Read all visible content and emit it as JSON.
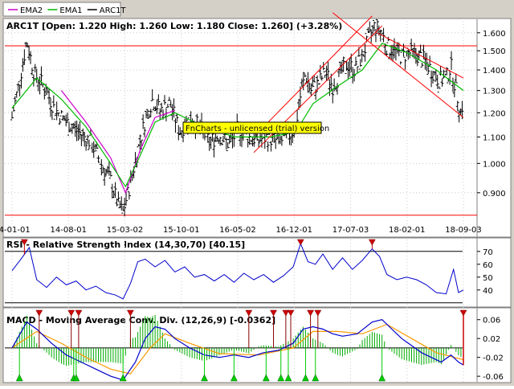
{
  "legend": {
    "items": [
      {
        "label": "EMA2",
        "color": "#cc00cc"
      },
      {
        "label": "EMA1",
        "color": "#00bb00"
      },
      {
        "label": "ARC1T",
        "color": "#000000"
      }
    ]
  },
  "watermark": "FnCharts - unlicensed (trial) version",
  "colors": {
    "price": "#000000",
    "ema1": "#00bb00",
    "ema2": "#cc00cc",
    "channel": "#ff0000",
    "rsi": "#0000cc",
    "macd": "#0000cc",
    "signal": "#ff9900",
    "histogram": "#00aa00",
    "buy": "#00cc00",
    "sell": "#cc0000",
    "panel_bg": "#ffffff",
    "chrome": "#d4d0c8"
  },
  "chart_data": [
    {
      "type": "line",
      "title": "ARC1T [Open: 1.220  High: 1.260  Low: 1.180  Close: 1.260] (+3.28%)",
      "x_tick_labels": [
        "14-01-01",
        "14-08-01",
        "15-03-02",
        "15-10-01",
        "16-05-02",
        "16-12-01",
        "17-07-03",
        "18-02-01",
        "18-09-03"
      ],
      "y_tick_labels": [
        "1.600",
        "1.500",
        "1.400",
        "1.300",
        "1.200",
        "1.100",
        "1.000",
        "0.900"
      ],
      "ylim": [
        0.82,
        1.67
      ],
      "scale": "log",
      "price_points": [
        {
          "t": 0,
          "v": 1.18
        },
        {
          "t": 3,
          "v": 1.34
        },
        {
          "t": 6,
          "v": 1.55
        },
        {
          "t": 9,
          "v": 1.38
        },
        {
          "t": 13,
          "v": 1.32
        },
        {
          "t": 17,
          "v": 1.22
        },
        {
          "t": 22,
          "v": 1.16
        },
        {
          "t": 27,
          "v": 1.12
        },
        {
          "t": 32,
          "v": 1.08
        },
        {
          "t": 36,
          "v": 1.0
        },
        {
          "t": 40,
          "v": 0.94
        },
        {
          "t": 43,
          "v": 0.86
        },
        {
          "t": 45,
          "v": 0.84
        },
        {
          "t": 48,
          "v": 0.93
        },
        {
          "t": 51,
          "v": 1.05
        },
        {
          "t": 54,
          "v": 1.17
        },
        {
          "t": 57,
          "v": 1.26
        },
        {
          "t": 60,
          "v": 1.21
        },
        {
          "t": 64,
          "v": 1.24
        },
        {
          "t": 68,
          "v": 1.12
        },
        {
          "t": 72,
          "v": 1.18
        },
        {
          "t": 76,
          "v": 1.14
        },
        {
          "t": 80,
          "v": 1.08
        },
        {
          "t": 84,
          "v": 1.11
        },
        {
          "t": 88,
          "v": 1.07
        },
        {
          "t": 92,
          "v": 1.13
        },
        {
          "t": 96,
          "v": 1.1
        },
        {
          "t": 100,
          "v": 1.09
        },
        {
          "t": 104,
          "v": 1.1
        },
        {
          "t": 108,
          "v": 1.08
        },
        {
          "t": 112,
          "v": 1.1
        },
        {
          "t": 115,
          "v": 1.14
        },
        {
          "t": 117,
          "v": 1.28
        },
        {
          "t": 119,
          "v": 1.38
        },
        {
          "t": 121,
          "v": 1.3
        },
        {
          "t": 124,
          "v": 1.33
        },
        {
          "t": 127,
          "v": 1.39
        },
        {
          "t": 130,
          "v": 1.32
        },
        {
          "t": 133,
          "v": 1.38
        },
        {
          "t": 136,
          "v": 1.43
        },
        {
          "t": 139,
          "v": 1.4
        },
        {
          "t": 142,
          "v": 1.47
        },
        {
          "t": 145,
          "v": 1.58
        },
        {
          "t": 147,
          "v": 1.64
        },
        {
          "t": 150,
          "v": 1.6
        },
        {
          "t": 152,
          "v": 1.52
        },
        {
          "t": 155,
          "v": 1.5
        },
        {
          "t": 158,
          "v": 1.47
        },
        {
          "t": 161,
          "v": 1.49
        },
        {
          "t": 164,
          "v": 1.48
        },
        {
          "t": 167,
          "v": 1.45
        },
        {
          "t": 170,
          "v": 1.4
        },
        {
          "t": 173,
          "v": 1.35
        },
        {
          "t": 176,
          "v": 1.36
        },
        {
          "t": 178,
          "v": 1.42
        },
        {
          "t": 180,
          "v": 1.3
        },
        {
          "t": 182,
          "v": 1.2
        },
        {
          "t": 183,
          "v": 1.26
        }
      ],
      "ema1_points": [
        {
          "t": 0,
          "v": 1.22
        },
        {
          "t": 10,
          "v": 1.36
        },
        {
          "t": 20,
          "v": 1.26
        },
        {
          "t": 30,
          "v": 1.14
        },
        {
          "t": 40,
          "v": 1.0
        },
        {
          "t": 46,
          "v": 0.92
        },
        {
          "t": 52,
          "v": 1.03
        },
        {
          "t": 58,
          "v": 1.16
        },
        {
          "t": 66,
          "v": 1.2
        },
        {
          "t": 76,
          "v": 1.15
        },
        {
          "t": 90,
          "v": 1.1
        },
        {
          "t": 105,
          "v": 1.1
        },
        {
          "t": 115,
          "v": 1.12
        },
        {
          "t": 122,
          "v": 1.24
        },
        {
          "t": 132,
          "v": 1.32
        },
        {
          "t": 142,
          "v": 1.4
        },
        {
          "t": 150,
          "v": 1.54
        },
        {
          "t": 160,
          "v": 1.49
        },
        {
          "t": 172,
          "v": 1.4
        },
        {
          "t": 183,
          "v": 1.3
        }
      ],
      "ema2_points": [
        {
          "t": 20,
          "v": 1.3
        },
        {
          "t": 30,
          "v": 1.16
        },
        {
          "t": 40,
          "v": 1.02
        },
        {
          "t": 46,
          "v": 0.9
        },
        {
          "t": 52,
          "v": 1.05
        },
        {
          "t": 58,
          "v": 1.18
        },
        {
          "t": 66,
          "v": 1.21
        }
      ],
      "horizontal_lines": [
        1.527,
        0.83
      ],
      "trend_channels": [
        {
          "from": {
            "t": 98,
            "v": 1.04
          },
          "to": {
            "t": 150,
            "v": 1.64
          }
        },
        {
          "from": {
            "t": 100,
            "v": 1.12
          },
          "to": {
            "t": 146,
            "v": 1.7
          }
        },
        {
          "from": {
            "t": 130,
            "v": 1.72
          },
          "to": {
            "t": 183,
            "v": 1.18
          }
        },
        {
          "from": {
            "t": 148,
            "v": 1.6
          },
          "to": {
            "t": 183,
            "v": 1.36
          }
        }
      ]
    },
    {
      "type": "line",
      "title": "RSI - Relative Strength Index (14,30,70) [40.15]",
      "y_tick_labels": [
        "70",
        "60",
        "50",
        "40"
      ],
      "ylim": [
        28,
        78
      ],
      "reference_lines": [
        70,
        30
      ],
      "points": [
        {
          "t": 0,
          "v": 55
        },
        {
          "t": 4,
          "v": 65
        },
        {
          "t": 7,
          "v": 73
        },
        {
          "t": 10,
          "v": 48
        },
        {
          "t": 14,
          "v": 42
        },
        {
          "t": 18,
          "v": 50
        },
        {
          "t": 22,
          "v": 44
        },
        {
          "t": 26,
          "v": 47
        },
        {
          "t": 30,
          "v": 40
        },
        {
          "t": 34,
          "v": 43
        },
        {
          "t": 38,
          "v": 38
        },
        {
          "t": 42,
          "v": 36
        },
        {
          "t": 45,
          "v": 33
        },
        {
          "t": 48,
          "v": 45
        },
        {
          "t": 51,
          "v": 62
        },
        {
          "t": 54,
          "v": 64
        },
        {
          "t": 58,
          "v": 58
        },
        {
          "t": 62,
          "v": 63
        },
        {
          "t": 66,
          "v": 54
        },
        {
          "t": 70,
          "v": 58
        },
        {
          "t": 74,
          "v": 50
        },
        {
          "t": 78,
          "v": 52
        },
        {
          "t": 82,
          "v": 47
        },
        {
          "t": 86,
          "v": 52
        },
        {
          "t": 90,
          "v": 46
        },
        {
          "t": 94,
          "v": 53
        },
        {
          "t": 98,
          "v": 48
        },
        {
          "t": 102,
          "v": 52
        },
        {
          "t": 106,
          "v": 46
        },
        {
          "t": 110,
          "v": 51
        },
        {
          "t": 114,
          "v": 58
        },
        {
          "t": 117,
          "v": 76
        },
        {
          "t": 120,
          "v": 62
        },
        {
          "t": 123,
          "v": 60
        },
        {
          "t": 126,
          "v": 68
        },
        {
          "t": 130,
          "v": 56
        },
        {
          "t": 134,
          "v": 65
        },
        {
          "t": 138,
          "v": 56
        },
        {
          "t": 142,
          "v": 63
        },
        {
          "t": 146,
          "v": 72
        },
        {
          "t": 149,
          "v": 66
        },
        {
          "t": 152,
          "v": 52
        },
        {
          "t": 156,
          "v": 48
        },
        {
          "t": 160,
          "v": 50
        },
        {
          "t": 164,
          "v": 48
        },
        {
          "t": 168,
          "v": 44
        },
        {
          "t": 172,
          "v": 38
        },
        {
          "t": 176,
          "v": 37
        },
        {
          "t": 179,
          "v": 56
        },
        {
          "t": 181,
          "v": 38
        },
        {
          "t": 183,
          "v": 40
        }
      ],
      "sell_signals_t": [
        5,
        117,
        146
      ]
    },
    {
      "type": "line",
      "title": "MACD - Moving Average Conv. Div. (12,26,9) [-0.0362]",
      "y_tick_labels": [
        "0.06",
        "0.02",
        "-0.02",
        "-0.06"
      ],
      "ylim": [
        -0.07,
        0.08
      ],
      "zero_line": 0,
      "macd_points": [
        {
          "t": 0,
          "v": 0.0
        },
        {
          "t": 6,
          "v": 0.055
        },
        {
          "t": 10,
          "v": 0.04
        },
        {
          "t": 16,
          "v": 0.01
        },
        {
          "t": 22,
          "v": -0.015
        },
        {
          "t": 28,
          "v": -0.03
        },
        {
          "t": 34,
          "v": -0.045
        },
        {
          "t": 40,
          "v": -0.06
        },
        {
          "t": 45,
          "v": -0.068
        },
        {
          "t": 50,
          "v": -0.03
        },
        {
          "t": 54,
          "v": 0.02
        },
        {
          "t": 58,
          "v": 0.045
        },
        {
          "t": 62,
          "v": 0.04
        },
        {
          "t": 66,
          "v": 0.02
        },
        {
          "t": 72,
          "v": 0.0
        },
        {
          "t": 78,
          "v": -0.015
        },
        {
          "t": 84,
          "v": -0.02
        },
        {
          "t": 90,
          "v": -0.015
        },
        {
          "t": 96,
          "v": -0.02
        },
        {
          "t": 102,
          "v": -0.01
        },
        {
          "t": 108,
          "v": -0.005
        },
        {
          "t": 114,
          "v": 0.01
        },
        {
          "t": 118,
          "v": 0.04
        },
        {
          "t": 122,
          "v": 0.045
        },
        {
          "t": 126,
          "v": 0.04
        },
        {
          "t": 130,
          "v": 0.03
        },
        {
          "t": 134,
          "v": 0.025
        },
        {
          "t": 140,
          "v": 0.03
        },
        {
          "t": 146,
          "v": 0.055
        },
        {
          "t": 150,
          "v": 0.06
        },
        {
          "t": 154,
          "v": 0.04
        },
        {
          "t": 158,
          "v": 0.02
        },
        {
          "t": 162,
          "v": 0.005
        },
        {
          "t": 166,
          "v": -0.01
        },
        {
          "t": 170,
          "v": -0.02
        },
        {
          "t": 174,
          "v": -0.03
        },
        {
          "t": 178,
          "v": -0.015
        },
        {
          "t": 181,
          "v": -0.03
        },
        {
          "t": 183,
          "v": -0.036
        }
      ],
      "signal_points": [
        {
          "t": 0,
          "v": 0.0
        },
        {
          "t": 10,
          "v": 0.035
        },
        {
          "t": 20,
          "v": 0.01
        },
        {
          "t": 30,
          "v": -0.02
        },
        {
          "t": 40,
          "v": -0.045
        },
        {
          "t": 48,
          "v": -0.055
        },
        {
          "t": 56,
          "v": 0.0
        },
        {
          "t": 62,
          "v": 0.03
        },
        {
          "t": 72,
          "v": 0.01
        },
        {
          "t": 84,
          "v": -0.012
        },
        {
          "t": 100,
          "v": -0.015
        },
        {
          "t": 114,
          "v": 0.0
        },
        {
          "t": 122,
          "v": 0.035
        },
        {
          "t": 132,
          "v": 0.035
        },
        {
          "t": 142,
          "v": 0.03
        },
        {
          "t": 152,
          "v": 0.05
        },
        {
          "t": 162,
          "v": 0.02
        },
        {
          "t": 172,
          "v": -0.01
        },
        {
          "t": 183,
          "v": -0.025
        }
      ],
      "sell_signals_t": [
        11,
        24,
        27,
        48,
        96,
        106,
        111,
        113,
        121,
        124
      ],
      "buy_signals_t": [
        3,
        25,
        26,
        45,
        78,
        90,
        103,
        109,
        112,
        119,
        123,
        150
      ],
      "final_sell_t": 183
    }
  ]
}
